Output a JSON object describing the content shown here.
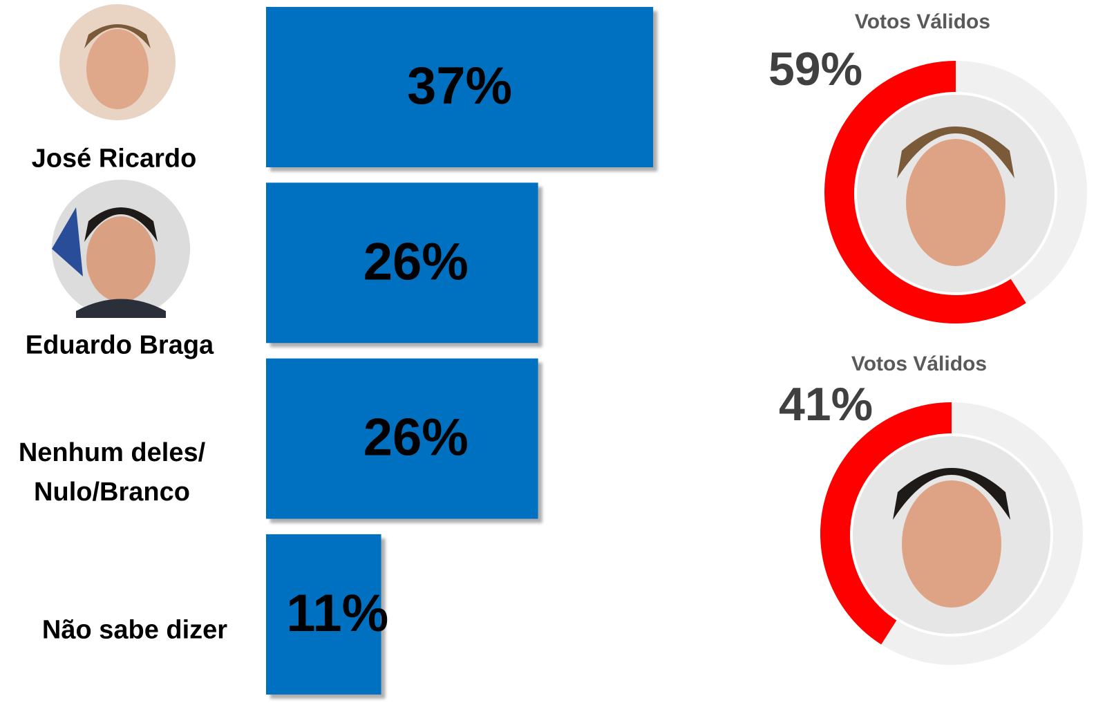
{
  "chart_data": [
    {
      "type": "bar",
      "orientation": "horizontal",
      "categories": [
        "José Ricardo",
        "Eduardo Braga",
        "Nenhum deles/\nNulo/Branco",
        "Não sabe dizer"
      ],
      "values": [
        37,
        26,
        26,
        11
      ],
      "value_labels": [
        "37%",
        "26%",
        "26%",
        "11%"
      ],
      "color": "#0070c0"
    },
    {
      "type": "donut",
      "title": "Votos Válidos",
      "values": [
        59
      ],
      "value_labels": [
        "59%"
      ],
      "color": "#ff0000"
    },
    {
      "type": "donut",
      "title": "Votos Válidos",
      "values": [
        41
      ],
      "value_labels": [
        "41%"
      ],
      "color": "#ff0000"
    }
  ]
}
